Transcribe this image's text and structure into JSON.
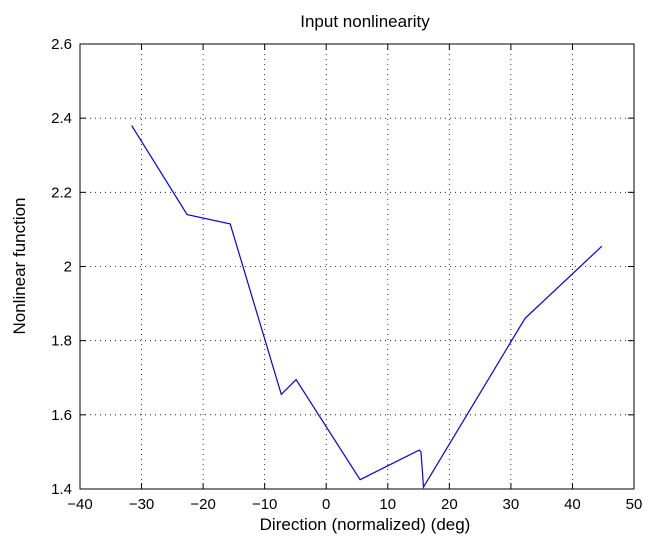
{
  "chart_data": {
    "type": "line",
    "title": "Input nonlinearity",
    "xlabel": "Direction (normalized) (deg)",
    "ylabel": "Nonlinear function",
    "xlim": [
      -40,
      50
    ],
    "ylim": [
      1.4,
      2.6
    ],
    "x_ticks": [
      -40,
      -30,
      -20,
      -10,
      0,
      10,
      20,
      30,
      40,
      50
    ],
    "y_ticks": [
      1.4,
      1.6,
      1.8,
      2.0,
      2.2,
      2.4,
      2.6
    ],
    "x_tick_labels": [
      "−40",
      "−30",
      "−20",
      "−10",
      "0",
      "10",
      "20",
      "30",
      "40",
      "50"
    ],
    "y_tick_labels": [
      "1.4",
      "1.6",
      "1.8",
      "2",
      "2.2",
      "2.4",
      "2.6"
    ],
    "grid": true,
    "grid_style": "dotted",
    "line_color": "#0000ff",
    "series": [
      {
        "x": [
          -31.6,
          -22.6,
          -15.6,
          -7.3,
          -4.9,
          5.5,
          15.1,
          15.4,
          15.8,
          32.3,
          44.8
        ],
        "y": [
          2.38,
          2.14,
          2.115,
          1.655,
          1.695,
          1.425,
          1.505,
          1.5,
          1.405,
          1.86,
          2.055
        ]
      }
    ]
  }
}
